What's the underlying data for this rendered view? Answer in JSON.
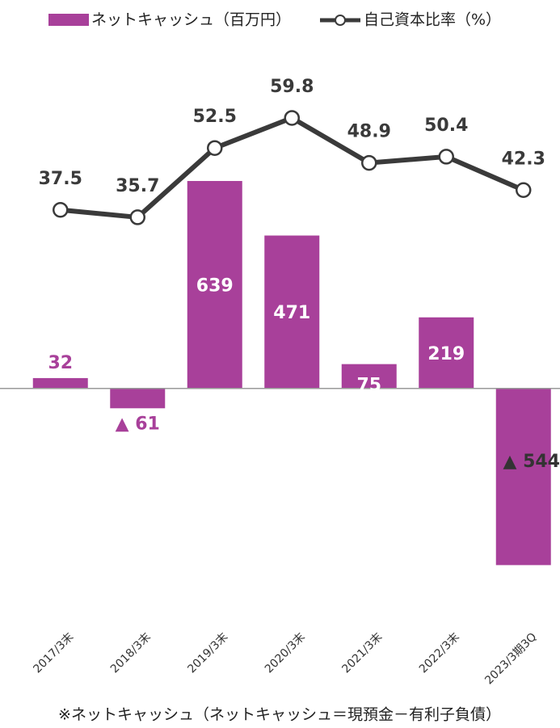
{
  "chart_data": {
    "type": "bar_line",
    "categories": [
      "2017/3末",
      "2018/3末",
      "2019/3末",
      "2020/3末",
      "2021/3末",
      "2022/3末",
      "2023/3期3Q"
    ],
    "series": [
      {
        "name": "ネットキャッシュ（百万円）",
        "color": "#a8409a",
        "type": "bar",
        "values": [
          32,
          -61,
          639,
          471,
          75,
          219,
          -544
        ],
        "value_labels": [
          "32",
          "▲ 61",
          "639",
          "471",
          "75",
          "219",
          "▲ 544"
        ]
      },
      {
        "name": "自己資本比率（%）",
        "color": "#3a3a3a",
        "type": "line",
        "axis": "y2",
        "values": [
          37.5,
          35.7,
          52.5,
          59.8,
          48.9,
          50.4,
          42.3
        ]
      }
    ],
    "ylim": [
      -650,
      950
    ],
    "y2lim": [
      -57,
      69
    ],
    "footnote": "※ネットキャッシュ（ネットキャッシュ＝現預金－有利子負債）"
  }
}
